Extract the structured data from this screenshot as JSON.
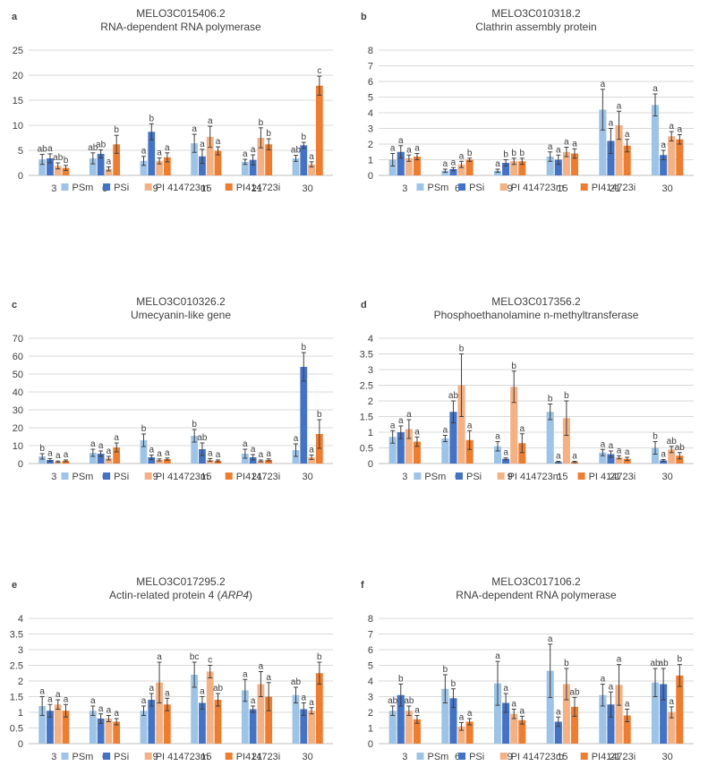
{
  "series_colors": [
    "#9DC3E6",
    "#4472C4",
    "#F4B183",
    "#ED7D31"
  ],
  "chart_data": [
    {
      "type": "bar",
      "panel": "a",
      "title": "MELO3C015406.2",
      "subtitle": "RNA-dependent RNA polymerase",
      "categories": [
        "3",
        "6",
        "9",
        "15",
        "21",
        "30"
      ],
      "ylim": [
        0,
        25
      ],
      "yticks": [
        "0",
        "5",
        "10",
        "15",
        "20",
        "25"
      ],
      "series": [
        {
          "name": "PSm",
          "values": [
            3.2,
            3.4,
            2.9,
            6.4,
            2.7,
            3.4
          ],
          "errors": [
            1.0,
            1.1,
            0.9,
            1.8,
            0.5,
            0.6
          ],
          "labels": [
            "ab",
            "ab",
            "a",
            "a",
            "a",
            "ab"
          ]
        },
        {
          "name": "PSi",
          "values": [
            3.4,
            4.3,
            8.7,
            3.8,
            3.1,
            6.0
          ],
          "errors": [
            0.9,
            0.8,
            1.6,
            1.4,
            1.0,
            0.6
          ],
          "labels": [
            "a",
            "ab",
            "b",
            "a",
            "a",
            "b"
          ]
        },
        {
          "name": "PI 414723m",
          "values": [
            1.9,
            1.3,
            2.9,
            7.7,
            7.5,
            2.2
          ],
          "errors": [
            0.6,
            0.4,
            0.6,
            2.1,
            2.0,
            0.5
          ],
          "labels": [
            "ab",
            "a",
            "a",
            "a",
            "b",
            "a"
          ]
        },
        {
          "name": "PI414723i",
          "values": [
            1.5,
            6.2,
            3.6,
            4.9,
            6.2,
            17.9
          ],
          "errors": [
            0.5,
            1.8,
            0.9,
            0.8,
            1.1,
            1.9
          ],
          "labels": [
            "b",
            "b",
            "a",
            "a",
            "b",
            "c"
          ]
        }
      ]
    },
    {
      "type": "bar",
      "panel": "b",
      "title": "MELO3C010318.2",
      "subtitle": "Clathrin assembly protein",
      "categories": [
        "3",
        "6",
        "9",
        "15",
        "21",
        "30"
      ],
      "ylim": [
        0,
        8
      ],
      "yticks": [
        "0",
        "1",
        "2",
        "3",
        "4",
        "5",
        "6",
        "7",
        "8"
      ],
      "series": [
        {
          "name": "PSm",
          "values": [
            1.0,
            0.3,
            0.3,
            1.2,
            4.2,
            4.5
          ],
          "errors": [
            0.4,
            0.1,
            0.1,
            0.3,
            1.3,
            0.7
          ],
          "labels": [
            "a",
            "a",
            "a",
            "a",
            "a",
            "a"
          ]
        },
        {
          "name": "PSi",
          "values": [
            1.5,
            0.4,
            0.8,
            1.0,
            2.2,
            1.3
          ],
          "errors": [
            0.4,
            0.1,
            0.2,
            0.3,
            0.8,
            0.3
          ],
          "labels": [
            "a",
            "a",
            "b",
            "a",
            "a",
            "a"
          ]
        },
        {
          "name": "PI 414723m",
          "values": [
            1.1,
            0.7,
            0.9,
            1.5,
            3.2,
            2.5
          ],
          "errors": [
            0.2,
            0.2,
            0.2,
            0.3,
            0.9,
            0.3
          ],
          "labels": [
            "a",
            "a",
            "b",
            "a",
            "a",
            "a"
          ]
        },
        {
          "name": "PI414723i",
          "values": [
            1.2,
            1.0,
            0.9,
            1.4,
            1.9,
            2.3
          ],
          "errors": [
            0.2,
            0.1,
            0.2,
            0.3,
            0.4,
            0.3
          ],
          "labels": [
            "a",
            "b",
            "b",
            "a",
            "a",
            "a"
          ]
        }
      ]
    },
    {
      "type": "bar",
      "panel": "c",
      "title": "MELO3C010326.2",
      "subtitle": "Umecyanin-like gene",
      "categories": [
        "3",
        "6",
        "9",
        "15",
        "21",
        "30"
      ],
      "ylim": [
        0,
        70
      ],
      "yticks": [
        "0",
        "10",
        "20",
        "30",
        "40",
        "50",
        "60",
        "70"
      ],
      "series": [
        {
          "name": "PSm",
          "values": [
            4.0,
            6.0,
            13.0,
            15.5,
            5.5,
            7.5
          ],
          "errors": [
            1.5,
            2.0,
            3.5,
            3.5,
            2.5,
            3.5
          ],
          "labels": [
            "b",
            "a",
            "b",
            "b",
            "a",
            "a"
          ]
        },
        {
          "name": "PSi",
          "values": [
            2.0,
            5.5,
            3.5,
            8.0,
            3.5,
            54.0
          ],
          "errors": [
            0.8,
            1.5,
            1.2,
            3.5,
            1.5,
            8.0
          ],
          "labels": [
            "a",
            "a",
            "a",
            "ab",
            "a",
            "b"
          ]
        },
        {
          "name": "PI 414723m",
          "values": [
            1.0,
            3.0,
            2.0,
            2.0,
            1.5,
            3.5
          ],
          "errors": [
            0.4,
            1.0,
            0.6,
            0.8,
            0.5,
            1.2
          ],
          "labels": [
            "a",
            "a",
            "a",
            "a",
            "a",
            "a"
          ]
        },
        {
          "name": "PI414723i",
          "values": [
            1.5,
            9.0,
            2.5,
            1.5,
            2.0,
            16.5
          ],
          "errors": [
            0.5,
            2.5,
            0.6,
            0.5,
            0.6,
            8.0
          ],
          "labels": [
            "a",
            "a",
            "a",
            "a",
            "a",
            "b"
          ]
        }
      ]
    },
    {
      "type": "bar",
      "panel": "d",
      "title": "MELO3C017356.2",
      "subtitle": "Phosphoethanolamine n-methyltransferase",
      "categories": [
        "3",
        "6",
        "9",
        "15",
        "21",
        "30"
      ],
      "ylim": [
        0,
        4
      ],
      "yticks": [
        "0",
        "0.5",
        "1",
        "1.5",
        "2",
        "2.5",
        "3",
        "3.5",
        "4"
      ],
      "series": [
        {
          "name": "PSm",
          "values": [
            0.85,
            0.8,
            0.55,
            1.65,
            0.35,
            0.5
          ],
          "errors": [
            0.2,
            0.1,
            0.15,
            0.25,
            0.1,
            0.2
          ],
          "labels": [
            "a",
            "a",
            "a",
            "b",
            "a",
            "b"
          ]
        },
        {
          "name": "PSi",
          "values": [
            1.0,
            1.65,
            0.15,
            0.05,
            0.3,
            0.1
          ],
          "errors": [
            0.2,
            0.35,
            0.03,
            0.02,
            0.1,
            0.03
          ],
          "labels": [
            "a",
            "ab",
            "a",
            "a",
            "a",
            "a"
          ]
        },
        {
          "name": "PI 414723m",
          "values": [
            1.1,
            2.5,
            2.45,
            1.45,
            0.2,
            0.45
          ],
          "errors": [
            0.3,
            1.0,
            0.5,
            0.55,
            0.05,
            0.1
          ],
          "labels": [
            "a",
            "b",
            "b",
            "b",
            "a",
            "ab"
          ]
        },
        {
          "name": "PI 414723i",
          "values": [
            0.7,
            0.75,
            0.65,
            0.05,
            0.15,
            0.25
          ],
          "errors": [
            0.15,
            0.3,
            0.3,
            0.02,
            0.05,
            0.1
          ],
          "labels": [
            "a",
            "a",
            "a",
            "a",
            "a",
            "ab"
          ]
        }
      ]
    },
    {
      "type": "bar",
      "panel": "e",
      "title": "MELO3C017295.2",
      "subtitle": "Actin-related protein 4 (",
      "subtitle_italic": "ARP4",
      "subtitle_end": ")",
      "categories": [
        "3",
        "6",
        "9",
        "15",
        "21",
        "30"
      ],
      "ylim": [
        0,
        4
      ],
      "yticks": [
        "0",
        "0.5",
        "1",
        "1.5",
        "2",
        "2.5",
        "3",
        "3.5",
        "4"
      ],
      "series": [
        {
          "name": "PSm",
          "values": [
            1.2,
            1.05,
            1.05,
            2.2,
            1.7,
            1.55
          ],
          "errors": [
            0.3,
            0.15,
            0.15,
            0.4,
            0.35,
            0.25
          ],
          "labels": [
            "a",
            "a",
            "a",
            "bc",
            "a",
            "ab"
          ]
        },
        {
          "name": "PSi",
          "values": [
            1.05,
            0.8,
            1.4,
            1.3,
            1.1,
            1.1
          ],
          "errors": [
            0.2,
            0.15,
            0.2,
            0.2,
            0.1,
            0.2
          ],
          "labels": [
            "a",
            "a",
            "a",
            "a",
            "a",
            "a"
          ]
        },
        {
          "name": "PI 414723m",
          "values": [
            1.25,
            0.8,
            1.95,
            2.3,
            1.9,
            1.05
          ],
          "errors": [
            0.15,
            0.1,
            0.65,
            0.2,
            0.4,
            0.1
          ],
          "labels": [
            "a",
            "a",
            "a",
            "c",
            "a",
            "a"
          ]
        },
        {
          "name": "PI414723i",
          "values": [
            1.05,
            0.7,
            1.25,
            1.4,
            1.5,
            2.25
          ],
          "errors": [
            0.2,
            0.1,
            0.2,
            0.2,
            0.45,
            0.35
          ],
          "labels": [
            "a",
            "a",
            "a",
            "ab",
            "a",
            "b"
          ]
        }
      ]
    },
    {
      "type": "bar",
      "panel": "f",
      "title": "MELO3C017106.2",
      "subtitle": "RNA-dependent RNA polymerase",
      "categories": [
        "3",
        "6",
        "9",
        "15",
        "21",
        "30"
      ],
      "ylim": [
        0,
        8
      ],
      "yticks": [
        "0",
        "1",
        "2",
        "3",
        "4",
        "5",
        "6",
        "7",
        "8"
      ],
      "series": [
        {
          "name": "PSm",
          "values": [
            2.1,
            3.5,
            3.85,
            4.65,
            3.1,
            3.9
          ],
          "errors": [
            0.3,
            0.9,
            1.4,
            1.7,
            0.7,
            0.9
          ],
          "labels": [
            "ab",
            "b",
            "a",
            "a",
            "a",
            "ab"
          ]
        },
        {
          "name": "PSi",
          "values": [
            3.1,
            2.9,
            2.6,
            1.4,
            2.5,
            3.8
          ],
          "errors": [
            0.7,
            0.6,
            0.6,
            0.3,
            0.8,
            1.0
          ],
          "labels": [
            "b",
            "b",
            "a",
            "a",
            "a",
            "ab"
          ]
        },
        {
          "name": "PI 414723m",
          "values": [
            2.1,
            1.1,
            1.9,
            3.8,
            3.75,
            2.0
          ],
          "errors": [
            0.3,
            0.25,
            0.3,
            1.0,
            1.3,
            0.35
          ],
          "labels": [
            "ab",
            "a",
            "a",
            "b",
            "a",
            "a"
          ]
        },
        {
          "name": "PI414723i",
          "values": [
            1.55,
            1.4,
            1.5,
            2.35,
            1.8,
            4.35
          ],
          "errors": [
            0.25,
            0.2,
            0.25,
            0.6,
            0.4,
            0.7
          ],
          "labels": [
            "a",
            "a",
            "a",
            "ab",
            "a",
            "b"
          ]
        }
      ]
    }
  ]
}
